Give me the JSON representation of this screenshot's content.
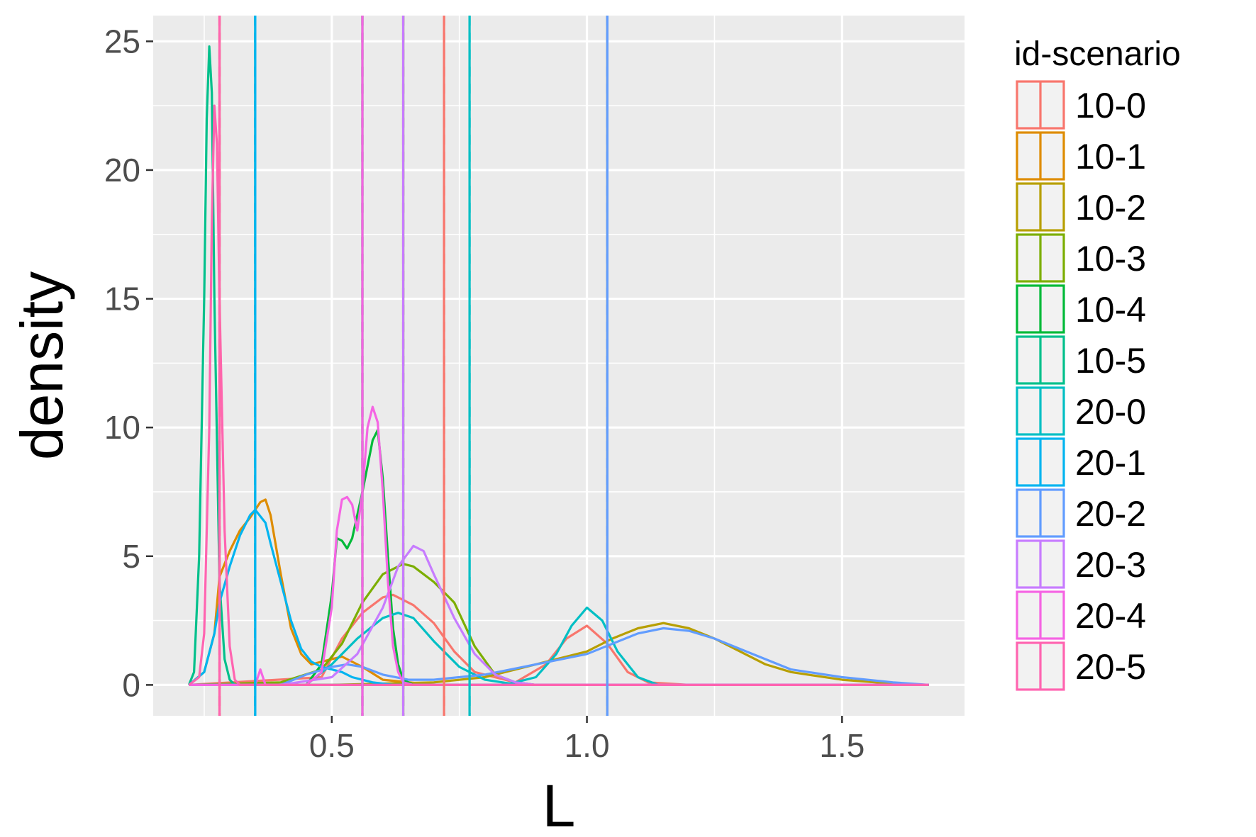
{
  "chart_data": {
    "type": "line",
    "title": "",
    "xlabel": "L",
    "ylabel": "density",
    "xlim": [
      0.15,
      1.74
    ],
    "ylim": [
      -1.2,
      26.0
    ],
    "x_ticks": [
      0.5,
      1.0,
      1.5
    ],
    "x_tick_labels": [
      "0.5",
      "1.0",
      "1.5"
    ],
    "y_ticks": [
      0,
      5,
      10,
      15,
      20,
      25
    ],
    "y_tick_labels": [
      "0",
      "5",
      "10",
      "15",
      "20",
      "25"
    ],
    "grid": true,
    "legend": {
      "title": "id-scenario",
      "position": "right"
    },
    "series": [
      {
        "name": "10-0",
        "color": "#F8766D",
        "vline": 0.72,
        "x": [
          0.22,
          0.48,
          0.52,
          0.56,
          0.6,
          0.62,
          0.66,
          0.7,
          0.74,
          0.78,
          0.86,
          0.92,
          0.96,
          1.0,
          1.04,
          1.08,
          1.12,
          1.2,
          1.67
        ],
        "y": [
          0,
          0.3,
          1.8,
          2.8,
          3.4,
          3.5,
          3.1,
          2.4,
          1.3,
          0.5,
          0.1,
          0.8,
          1.8,
          2.3,
          1.6,
          0.5,
          0.1,
          0,
          0
        ]
      },
      {
        "name": "10-1",
        "color": "#DE8C00",
        "vline": 0.28,
        "x": [
          0.22,
          0.25,
          0.27,
          0.28,
          0.3,
          0.32,
          0.34,
          0.36,
          0.37,
          0.38,
          0.4,
          0.42,
          0.44,
          0.46,
          0.5,
          0.52,
          0.56,
          0.6,
          0.7,
          1.67
        ],
        "y": [
          0,
          0.5,
          2,
          4.2,
          5.2,
          6,
          6.5,
          7.1,
          7.2,
          6.6,
          4.3,
          2.2,
          1.2,
          0.8,
          1.0,
          1.1,
          0.7,
          0.2,
          0,
          0
        ]
      },
      {
        "name": "10-2",
        "color": "#B79F00",
        "vline": 1.04,
        "x": [
          0.22,
          0.5,
          0.7,
          0.8,
          0.9,
          1.0,
          1.05,
          1.1,
          1.15,
          1.2,
          1.25,
          1.3,
          1.35,
          1.4,
          1.5,
          1.6,
          1.67
        ],
        "y": [
          0,
          0,
          0.1,
          0.3,
          0.8,
          1.3,
          1.8,
          2.2,
          2.4,
          2.2,
          1.8,
          1.3,
          0.8,
          0.5,
          0.2,
          0.05,
          0
        ]
      },
      {
        "name": "10-3",
        "color": "#7CAE00",
        "vline": 0.64,
        "x": [
          0.22,
          0.4,
          0.48,
          0.52,
          0.56,
          0.6,
          0.64,
          0.66,
          0.7,
          0.74,
          0.78,
          0.82,
          0.86,
          0.9,
          1.67
        ],
        "y": [
          0,
          0.1,
          0.6,
          1.6,
          3.2,
          4.3,
          4.7,
          4.6,
          4.0,
          3.2,
          1.5,
          0.4,
          0.1,
          0,
          0
        ]
      },
      {
        "name": "10-4",
        "color": "#00BA38",
        "vline": 0.56,
        "x": [
          0.22,
          0.45,
          0.48,
          0.5,
          0.51,
          0.52,
          0.53,
          0.54,
          0.56,
          0.58,
          0.59,
          0.6,
          0.61,
          0.62,
          0.63,
          0.64,
          0.66,
          1.67
        ],
        "y": [
          0,
          0,
          0.8,
          3.5,
          5.7,
          5.6,
          5.3,
          5.7,
          7.5,
          9.5,
          9.9,
          8.0,
          5.0,
          2.2,
          0.8,
          0.2,
          0,
          0
        ]
      },
      {
        "name": "10-5",
        "color": "#00C08B",
        "vline": 0.35,
        "x": [
          0.22,
          0.23,
          0.24,
          0.25,
          0.255,
          0.26,
          0.265,
          0.27,
          0.28,
          0.29,
          0.3,
          0.31,
          0.32,
          1.67
        ],
        "y": [
          0,
          0.5,
          5,
          15,
          22,
          24.8,
          23,
          15,
          4,
          1,
          0.2,
          0,
          0,
          0
        ]
      },
      {
        "name": "20-0",
        "color": "#00BFC4",
        "vline": 0.77,
        "x": [
          0.22,
          0.45,
          0.5,
          0.55,
          0.6,
          0.63,
          0.66,
          0.7,
          0.75,
          0.8,
          0.85,
          0.9,
          0.94,
          0.97,
          1.0,
          1.03,
          1.06,
          1.1,
          1.14,
          1.67
        ],
        "y": [
          0,
          0,
          0.8,
          1.8,
          2.6,
          2.8,
          2.6,
          1.7,
          0.7,
          0.2,
          0.05,
          0.3,
          1.2,
          2.3,
          3.0,
          2.5,
          1.3,
          0.3,
          0,
          0
        ]
      },
      {
        "name": "20-1",
        "color": "#00B4F0",
        "vline": 0.35,
        "x": [
          0.22,
          0.25,
          0.27,
          0.28,
          0.3,
          0.32,
          0.34,
          0.35,
          0.37,
          0.38,
          0.4,
          0.42,
          0.44,
          0.46,
          0.48,
          0.5,
          0.52,
          0.54,
          0.58,
          0.62,
          1.67
        ],
        "y": [
          0,
          0.5,
          2,
          3.2,
          4.6,
          5.8,
          6.6,
          6.8,
          6.3,
          5.5,
          4.0,
          2.5,
          1.4,
          0.9,
          0.7,
          0.6,
          0.5,
          0.3,
          0.1,
          0,
          0
        ]
      },
      {
        "name": "20-2",
        "color": "#619CFF",
        "vline": 1.04,
        "x": [
          0.22,
          0.4,
          0.45,
          0.5,
          0.53,
          0.56,
          0.6,
          0.65,
          0.7,
          0.8,
          0.9,
          1.0,
          1.05,
          1.1,
          1.15,
          1.2,
          1.25,
          1.3,
          1.35,
          1.4,
          1.5,
          1.6,
          1.67
        ],
        "y": [
          0,
          0,
          0.4,
          0.7,
          0.8,
          0.7,
          0.4,
          0.2,
          0.2,
          0.4,
          0.8,
          1.2,
          1.6,
          2.0,
          2.2,
          2.1,
          1.8,
          1.4,
          1.0,
          0.6,
          0.3,
          0.1,
          0
        ]
      },
      {
        "name": "20-3",
        "color": "#C77CFF",
        "vline": 0.64,
        "x": [
          0.22,
          0.4,
          0.5,
          0.55,
          0.6,
          0.63,
          0.66,
          0.68,
          0.7,
          0.74,
          0.78,
          0.82,
          0.86,
          0.9,
          1.67
        ],
        "y": [
          0,
          0,
          0.3,
          1.2,
          3.0,
          4.6,
          5.4,
          5.2,
          4.3,
          2.6,
          1.2,
          0.4,
          0.1,
          0,
          0
        ]
      },
      {
        "name": "20-4",
        "color": "#F564E3",
        "vline": 0.56,
        "x": [
          0.22,
          0.35,
          0.36,
          0.37,
          0.38,
          0.45,
          0.48,
          0.5,
          0.51,
          0.52,
          0.53,
          0.54,
          0.55,
          0.56,
          0.57,
          0.58,
          0.59,
          0.6,
          0.61,
          0.62,
          0.63,
          0.64,
          0.66,
          1.67
        ],
        "y": [
          0,
          0,
          0.6,
          0,
          0,
          0,
          0.5,
          3,
          6,
          7.2,
          7.3,
          7.0,
          6.0,
          7.5,
          10,
          10.8,
          10.2,
          7.5,
          4.0,
          1.5,
          0.5,
          0.1,
          0,
          0
        ]
      },
      {
        "name": "20-5",
        "color": "#FF64B0",
        "vline": 0.28,
        "x": [
          0.22,
          0.24,
          0.25,
          0.26,
          0.265,
          0.27,
          0.275,
          0.28,
          0.29,
          0.3,
          0.31,
          0.32,
          1.67
        ],
        "y": [
          0,
          0.3,
          2,
          10,
          18,
          22.5,
          21,
          15,
          6,
          1.5,
          0.2,
          0,
          0
        ]
      }
    ]
  }
}
